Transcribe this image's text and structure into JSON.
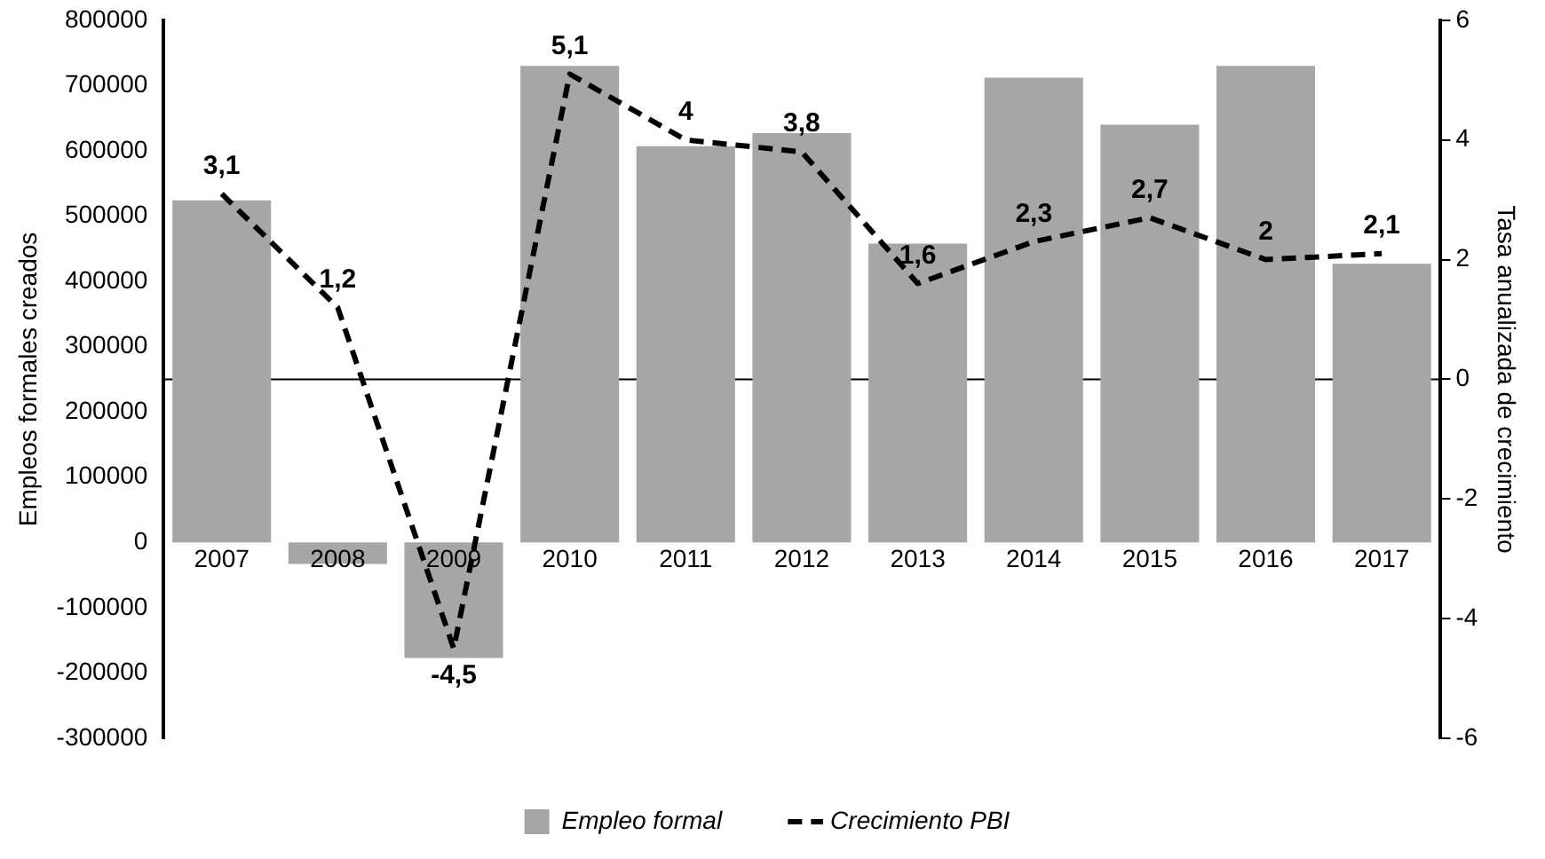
{
  "chart_data": {
    "type": "bar",
    "categories": [
      "2007",
      "2008",
      "2009",
      "2010",
      "2011",
      "2012",
      "2013",
      "2014",
      "2015",
      "2016",
      "2017"
    ],
    "series": [
      {
        "name": "Empleo formal",
        "color": "#a6a6a6",
        "values": [
          524000,
          -33000,
          -177000,
          730000,
          607000,
          627000,
          458000,
          712000,
          640000,
          730000,
          427000
        ]
      },
      {
        "name": "Crecimiento PBI",
        "type": "line",
        "axis": "y2",
        "color": "#000000",
        "line_style": "dashed",
        "marker": "none",
        "values": [
          3.1,
          1.2,
          -4.5,
          5.1,
          4,
          3.8,
          1.6,
          2.3,
          2.7,
          2,
          2.1
        ],
        "value_labels": [
          "3,1",
          "1,2",
          "-4,5",
          "5,1",
          "4",
          "3,8",
          "1,6",
          "2,3",
          "2,7",
          "2",
          "2,1"
        ]
      }
    ],
    "ylabel": "Empleos formales creados",
    "y2label": "Tasa anualizada de crecimiento",
    "ylim": [
      -300000,
      800000
    ],
    "yticks": [
      -300000,
      -200000,
      -100000,
      0,
      100000,
      200000,
      300000,
      400000,
      500000,
      600000,
      700000,
      800000
    ],
    "y2lim": [
      -6,
      6
    ],
    "y2ticks": [
      -6,
      -4,
      -2,
      0,
      2,
      4,
      6
    ],
    "ref_lines": [
      {
        "axis": "y2",
        "value": 0,
        "color": "#000000"
      }
    ],
    "grid": false,
    "legend": "bottom"
  }
}
